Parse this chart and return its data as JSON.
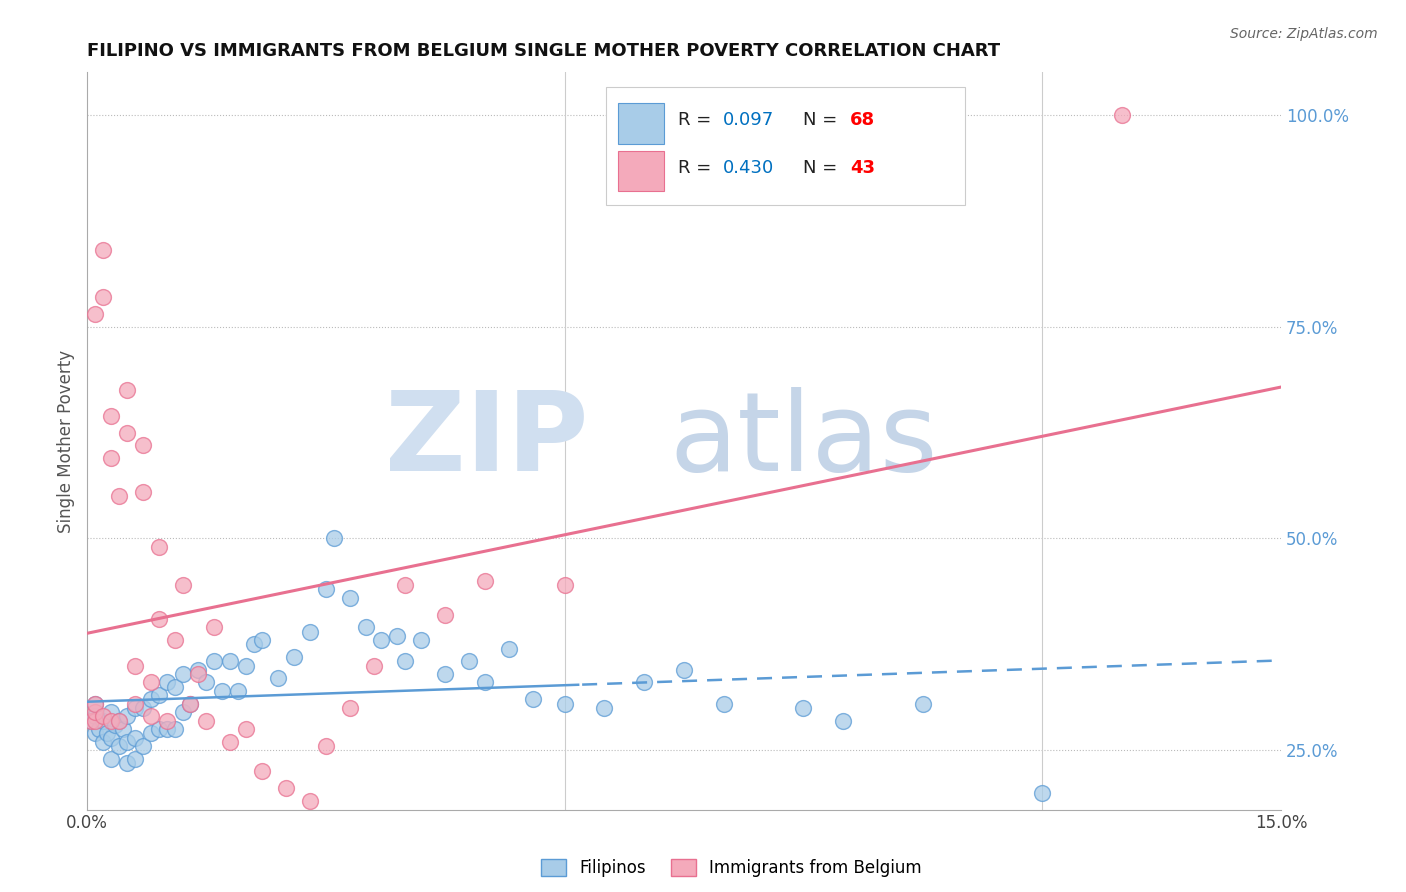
{
  "title": "FILIPINO VS IMMIGRANTS FROM BELGIUM SINGLE MOTHER POVERTY CORRELATION CHART",
  "source": "Source: ZipAtlas.com",
  "ylabel": "Single Mother Poverty",
  "xlim": [
    0.0,
    0.15
  ],
  "ylim": [
    0.18,
    1.05
  ],
  "yticks": [
    0.25,
    0.5,
    0.75,
    1.0
  ],
  "blue_color": "#A8CCE8",
  "pink_color": "#F4AABB",
  "blue_edge_color": "#5B9BD5",
  "pink_edge_color": "#E87090",
  "blue_line_color": "#5B9BD5",
  "pink_line_color": "#E87090",
  "R_blue": 0.097,
  "N_blue": 68,
  "R_pink": 0.43,
  "N_pink": 43,
  "text_R_color": "#0070C0",
  "text_N_color": "#FF0000",
  "blue_scatter_x": [
    0.0005,
    0.001,
    0.001,
    0.001,
    0.0015,
    0.002,
    0.002,
    0.0025,
    0.003,
    0.003,
    0.003,
    0.0035,
    0.004,
    0.004,
    0.0045,
    0.005,
    0.005,
    0.005,
    0.006,
    0.006,
    0.006,
    0.007,
    0.007,
    0.008,
    0.008,
    0.009,
    0.009,
    0.01,
    0.01,
    0.011,
    0.011,
    0.012,
    0.012,
    0.013,
    0.014,
    0.015,
    0.016,
    0.017,
    0.018,
    0.019,
    0.02,
    0.021,
    0.022,
    0.024,
    0.026,
    0.028,
    0.03,
    0.031,
    0.033,
    0.035,
    0.037,
    0.039,
    0.04,
    0.042,
    0.045,
    0.048,
    0.05,
    0.053,
    0.056,
    0.06,
    0.065,
    0.07,
    0.075,
    0.08,
    0.09,
    0.095,
    0.105,
    0.12
  ],
  "blue_scatter_y": [
    0.285,
    0.27,
    0.29,
    0.305,
    0.275,
    0.26,
    0.285,
    0.27,
    0.24,
    0.265,
    0.295,
    0.28,
    0.255,
    0.285,
    0.275,
    0.235,
    0.26,
    0.29,
    0.24,
    0.265,
    0.3,
    0.255,
    0.3,
    0.27,
    0.31,
    0.275,
    0.315,
    0.275,
    0.33,
    0.275,
    0.325,
    0.295,
    0.34,
    0.305,
    0.345,
    0.33,
    0.355,
    0.32,
    0.355,
    0.32,
    0.35,
    0.375,
    0.38,
    0.335,
    0.36,
    0.39,
    0.44,
    0.5,
    0.43,
    0.395,
    0.38,
    0.385,
    0.355,
    0.38,
    0.34,
    0.355,
    0.33,
    0.37,
    0.31,
    0.305,
    0.3,
    0.33,
    0.345,
    0.305,
    0.3,
    0.285,
    0.305,
    0.2
  ],
  "pink_scatter_x": [
    0.0005,
    0.001,
    0.001,
    0.001,
    0.001,
    0.002,
    0.002,
    0.002,
    0.003,
    0.003,
    0.003,
    0.004,
    0.004,
    0.005,
    0.005,
    0.006,
    0.006,
    0.007,
    0.007,
    0.008,
    0.008,
    0.009,
    0.009,
    0.01,
    0.011,
    0.012,
    0.013,
    0.014,
    0.015,
    0.016,
    0.018,
    0.02,
    0.022,
    0.025,
    0.028,
    0.03,
    0.033,
    0.036,
    0.04,
    0.045,
    0.05,
    0.06,
    0.13
  ],
  "pink_scatter_y": [
    0.285,
    0.285,
    0.295,
    0.305,
    0.765,
    0.785,
    0.84,
    0.29,
    0.595,
    0.645,
    0.285,
    0.285,
    0.55,
    0.625,
    0.675,
    0.305,
    0.35,
    0.555,
    0.61,
    0.29,
    0.33,
    0.405,
    0.49,
    0.285,
    0.38,
    0.445,
    0.305,
    0.34,
    0.285,
    0.395,
    0.26,
    0.275,
    0.225,
    0.205,
    0.19,
    0.255,
    0.3,
    0.35,
    0.445,
    0.41,
    0.45,
    0.445,
    1.0
  ]
}
